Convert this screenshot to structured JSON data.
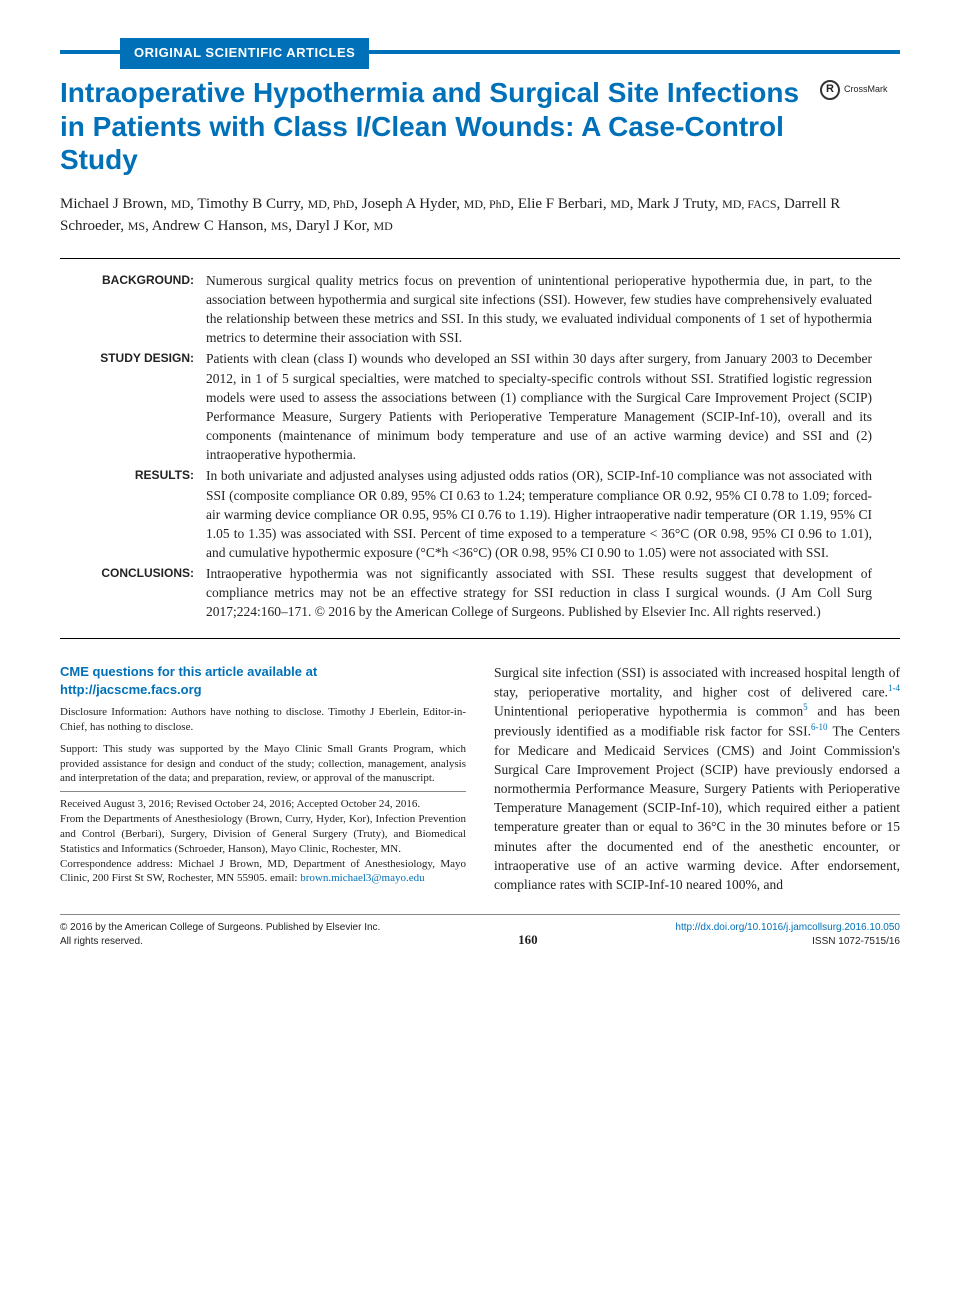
{
  "category": "ORIGINAL SCIENTIFIC ARTICLES",
  "title": "Intraoperative Hypothermia and Surgical Site Infections in Patients with Class I/Clean Wounds: A Case-Control Study",
  "crossmark": "CrossMark",
  "authors": [
    {
      "name": "Michael J Brown",
      "cred": "MD"
    },
    {
      "name": "Timothy B Curry",
      "cred": "MD, PhD"
    },
    {
      "name": "Joseph A Hyder",
      "cred": "MD, PhD"
    },
    {
      "name": "Elie F Berbari",
      "cred": "MD"
    },
    {
      "name": "Mark J Truty",
      "cred": "MD, FACS"
    },
    {
      "name": "Darrell R Schroeder",
      "cred": "MS"
    },
    {
      "name": "Andrew C Hanson",
      "cred": "MS"
    },
    {
      "name": "Daryl J Kor",
      "cred": "MD"
    }
  ],
  "abstract": {
    "background": {
      "label": "BACKGROUND:",
      "text": "Numerous surgical quality metrics focus on prevention of unintentional perioperative hypothermia due, in part, to the association between hypothermia and surgical site infections (SSI). However, few studies have comprehensively evaluated the relationship between these metrics and SSI. In this study, we evaluated individual components of 1 set of hypothermia metrics to determine their association with SSI."
    },
    "design": {
      "label": "STUDY DESIGN:",
      "text": "Patients with clean (class I) wounds who developed an SSI within 30 days after surgery, from January 2003 to December 2012, in 1 of 5 surgical specialties, were matched to specialty-specific controls without SSI. Stratified logistic regression models were used to assess the associations between (1) compliance with the Surgical Care Improvement Project (SCIP) Performance Measure, Surgery Patients with Perioperative Temperature Management (SCIP-Inf-10), overall and its components (maintenance of minimum body temperature and use of an active warming device) and SSI and (2) intraoperative hypothermia."
    },
    "results": {
      "label": "RESULTS:",
      "text": "In both univariate and adjusted analyses using adjusted odds ratios (OR), SCIP-Inf-10 compliance was not associated with SSI (composite compliance OR 0.89, 95% CI 0.63 to 1.24; temperature compliance OR 0.92, 95% CI 0.78 to 1.09; forced-air warming device compliance OR 0.95, 95% CI 0.76 to 1.19). Higher intraoperative nadir temperature (OR 1.19, 95% CI 1.05 to 1.35) was associated with SSI. Percent of time exposed to a temperature < 36°C (OR 0.98, 95% CI 0.96 to 1.01), and cumulative hypothermic exposure (°C*h <36°C) (OR 0.98, 95% CI 0.90 to 1.05) were not associated with SSI."
    },
    "conclusions": {
      "label": "CONCLUSIONS:",
      "text": "Intraoperative hypothermia was not significantly associated with SSI. These results suggest that development of compliance metrics may not be an effective strategy for SSI reduction in class I surgical wounds. (J Am Coll Surg 2017;224:160–171. © 2016 by the American College of Surgeons. Published by Elsevier Inc. All rights reserved.)"
    }
  },
  "cme": {
    "line1": "CME questions for this article available at",
    "url": "http://jacscme.facs.org"
  },
  "disclosure": "Disclosure Information: Authors have nothing to disclose. Timothy J Eberlein, Editor-in-Chief, has nothing to disclose.",
  "support": "Support: This study was supported by the Mayo Clinic Small Grants Program, which provided assistance for design and conduct of the study; collection, management, analysis and interpretation of the data; and preparation, review, or approval of the manuscript.",
  "received": "Received August 3, 2016; Revised October 24, 2016; Accepted October 24, 2016.",
  "from": "From the Departments of Anesthesiology (Brown, Curry, Hyder, Kor), Infection Prevention and Control (Berbari), Surgery, Division of General Surgery (Truty), and Biomedical Statistics and Informatics (Schroeder, Hanson), Mayo Clinic, Rochester, MN.",
  "correspondence_pre": "Correspondence address: Michael J Brown, MD, Department of Anesthesiology, Mayo Clinic, 200 First St SW, Rochester, MN 55905. email: ",
  "correspondence_email": "brown.michael3@mayo.edu",
  "body_pre1": "Surgical site infection (SSI) is associated with increased hospital length of stay, perioperative mortality, and higher cost of delivered care.",
  "ref1": "1-4",
  "body_pre2": " Unintentional perioperative hypothermia is common",
  "ref2": "5",
  "body_pre3": " and has been previously identified as a modifiable risk factor for SSI.",
  "ref3": "6-10",
  "body_rest": " The Centers for Medicare and Medicaid Services (CMS) and Joint Commission's Surgical Care Improvement Project (SCIP) have previously endorsed a normothermia Performance Measure, Surgery Patients with Perioperative Temperature Management (SCIP-Inf-10), which required either a patient temperature greater than or equal to 36°C in the 30 minutes before or 15 minutes after the documented end of the anesthetic encounter, or intraoperative use of an active warming device. After endorsement, compliance rates with SCIP-Inf-10 neared 100%, and",
  "footer": {
    "copyright": "© 2016 by the American College of Surgeons. Published by Elsevier Inc.",
    "rights": "All rights reserved.",
    "page": "160",
    "doi": "http://dx.doi.org/10.1016/j.jamcollsurg.2016.10.050",
    "issn": "ISSN 1072-7515/16"
  },
  "colors": {
    "brand": "#0070b8",
    "text": "#222222",
    "rule": "#888888"
  }
}
